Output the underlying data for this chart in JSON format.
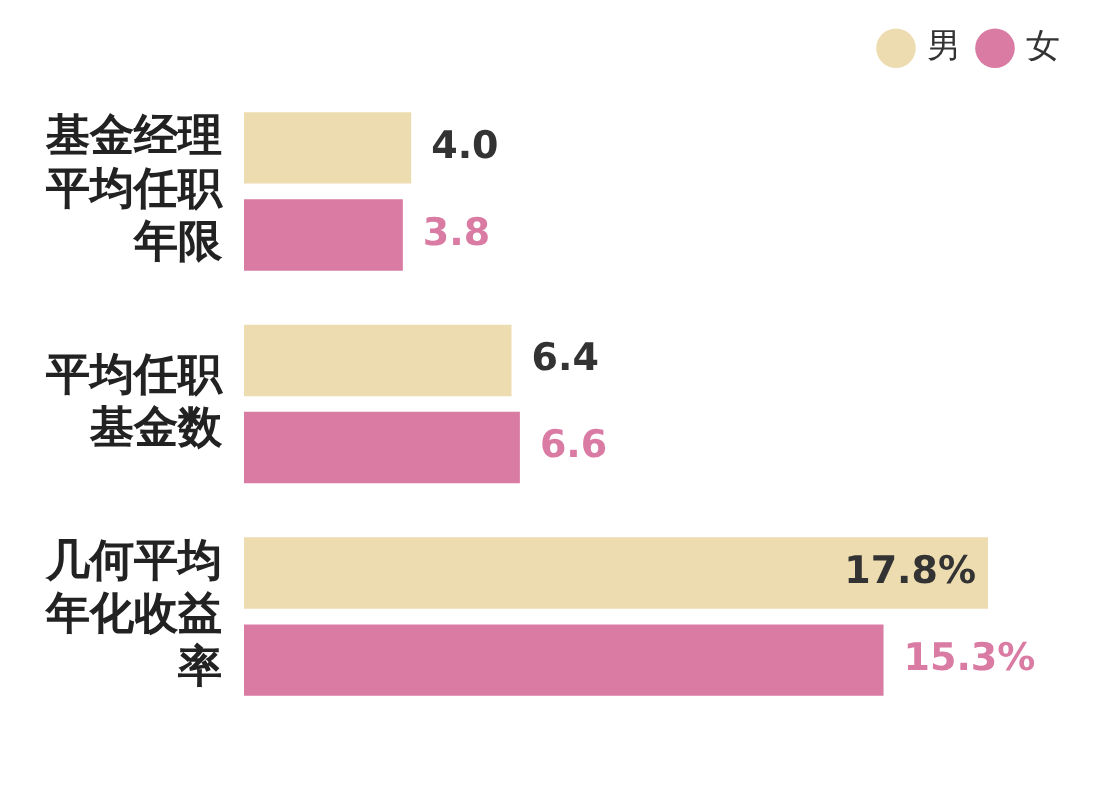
{
  "chart_data": {
    "type": "bar",
    "orientation": "horizontal",
    "categories": [
      "基金经理平均任职年限",
      "平均任职基金数",
      "几何平均年化收益率"
    ],
    "series": [
      {
        "name": "男",
        "color": "#ecdcb0",
        "values": [
          4.0,
          6.4,
          17.8
        ],
        "value_labels": [
          "4.0",
          "6.4",
          "17.8%"
        ]
      },
      {
        "name": "女",
        "color": "#d97ba3",
        "values": [
          3.8,
          6.6,
          15.3
        ],
        "value_labels": [
          "3.8",
          "6.6",
          "15.3%"
        ]
      }
    ],
    "legend": "top right",
    "tick_labels": "y",
    "grid": false
  }
}
